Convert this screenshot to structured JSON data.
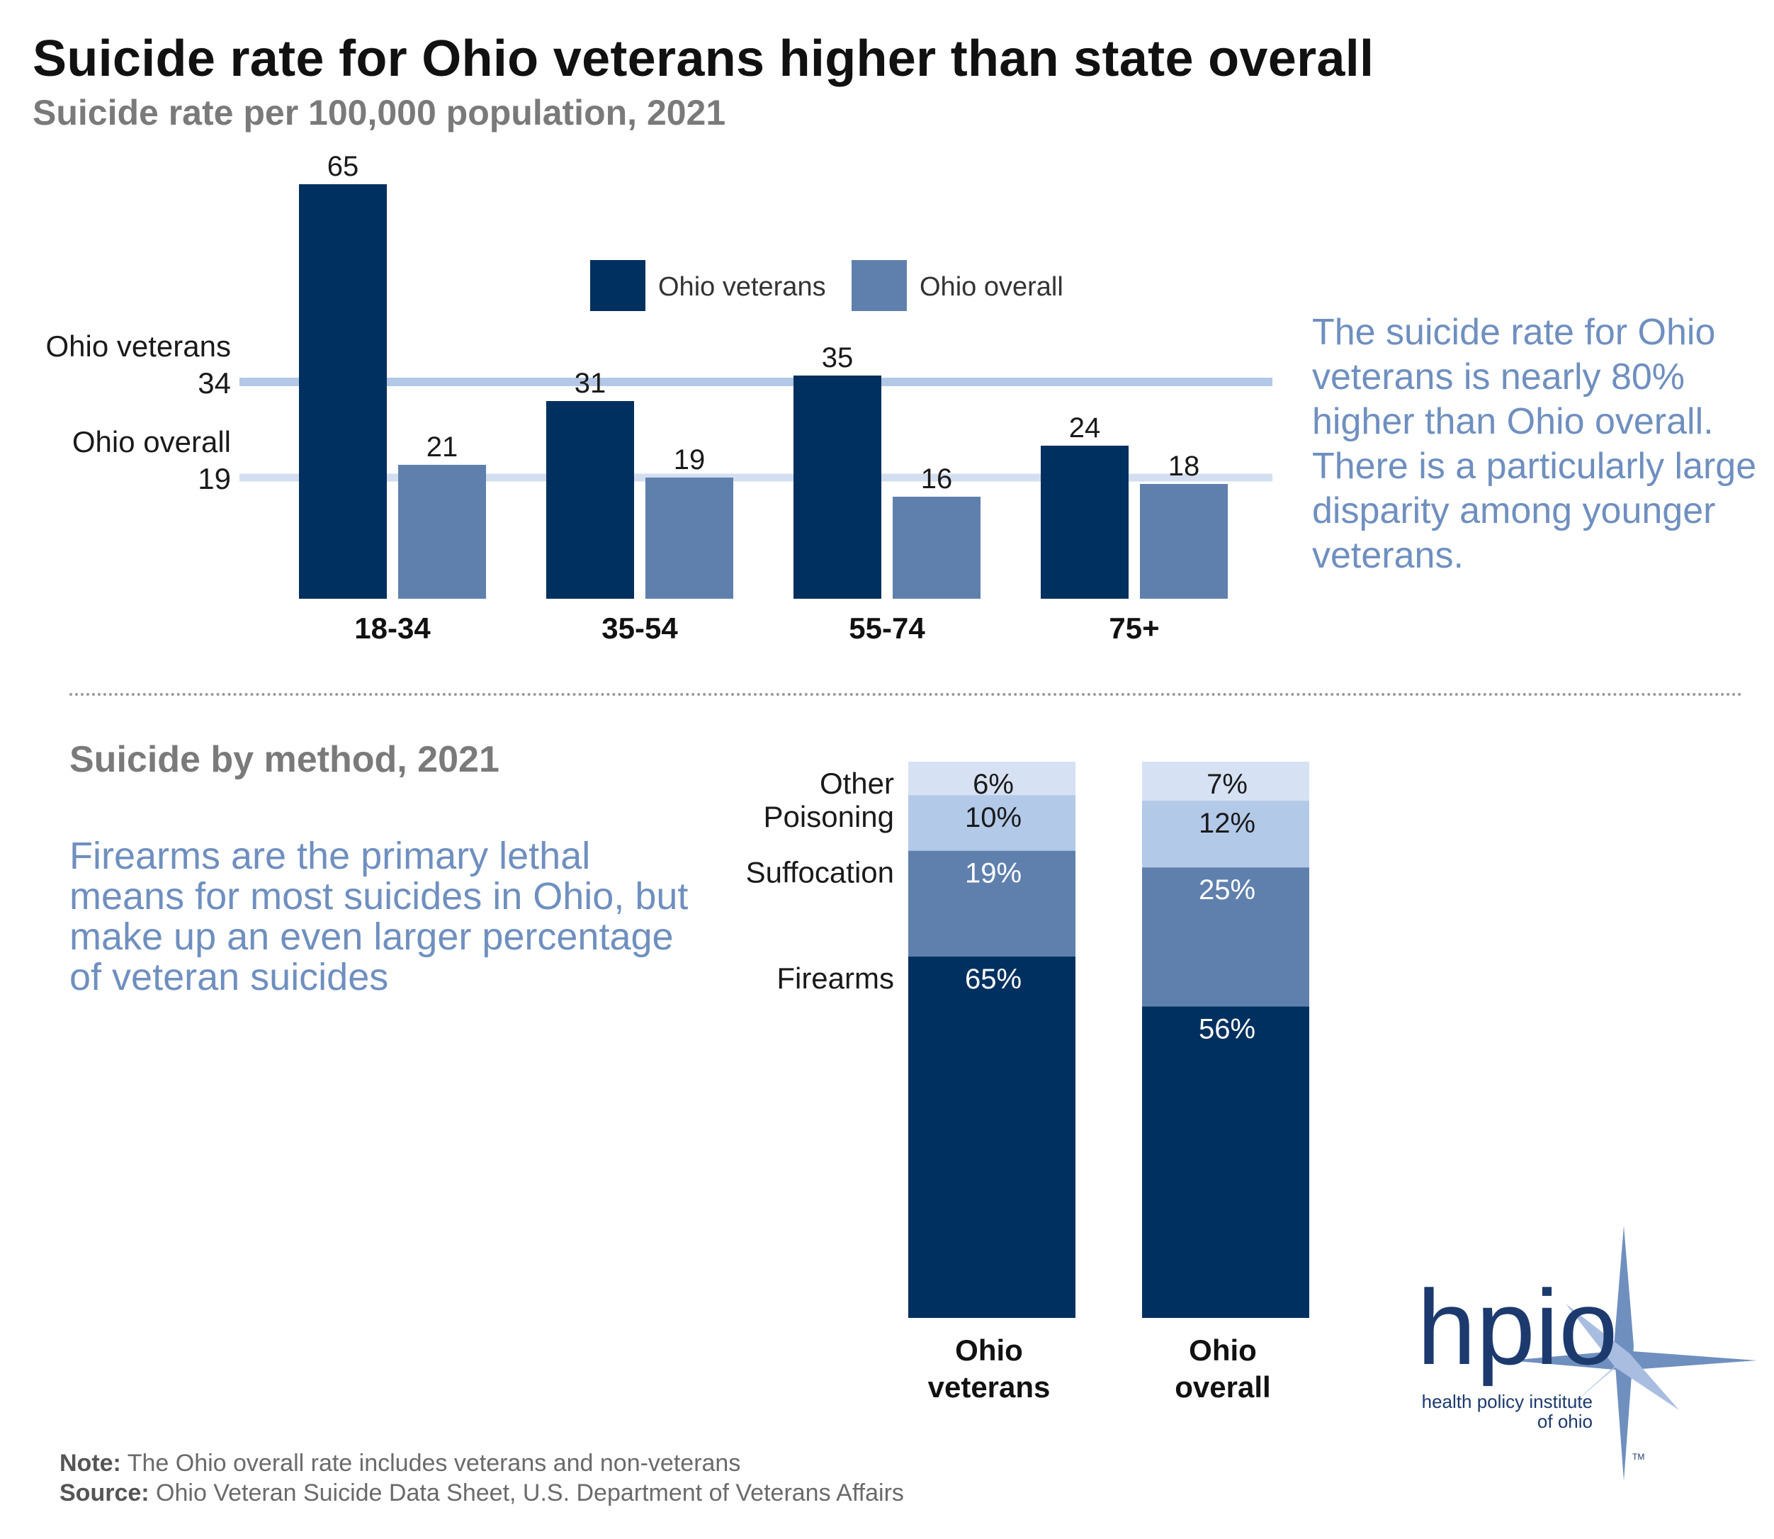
{
  "title": "Suicide rate for Ohio veterans higher than state overall",
  "subtitle": "Suicide rate per 100,000 population, 2021",
  "colors": {
    "veterans": "#00305f",
    "overall": "#5f80ad",
    "ref_line_veterans": "#b3c8e6",
    "ref_line_overall": "#d3dff0",
    "callout_text": "#6f8fbf",
    "other": "#d6e2f3",
    "poisoning": "#b3c9e8"
  },
  "callout_top": "The suicide rate for Ohio veterans is nearly 80% higher than Ohio overall. There is a particularly large disparity among younger veterans.",
  "chart_data": [
    {
      "type": "bar",
      "title": "Suicide rate per 100,000 population, 2021",
      "categories": [
        "18-34",
        "35-54",
        "55-74",
        "75+"
      ],
      "series": [
        {
          "name": "Ohio veterans",
          "values": [
            65,
            31,
            35,
            24
          ]
        },
        {
          "name": "Ohio overall",
          "values": [
            21,
            19,
            16,
            18
          ]
        }
      ],
      "reference_lines": [
        {
          "name": "Ohio veterans",
          "value": 34
        },
        {
          "name": "Ohio overall",
          "value": 19
        }
      ],
      "legend": [
        "Ohio veterans",
        "Ohio overall"
      ],
      "legend_position": "top-center",
      "ylim": [
        0,
        65
      ],
      "grid": false
    },
    {
      "type": "bar",
      "stacked": true,
      "percent": true,
      "title": "Suicide by method, 2021",
      "categories": [
        "Ohio veterans",
        "Ohio overall"
      ],
      "category_labels": [
        [
          "Ohio",
          "veterans"
        ],
        [
          "Ohio",
          "overall"
        ]
      ],
      "series": [
        {
          "name": "Firearms",
          "values": [
            65,
            56
          ],
          "labels": [
            "65%",
            "56%"
          ]
        },
        {
          "name": "Suffocation",
          "values": [
            19,
            25
          ],
          "labels": [
            "19%",
            "25%"
          ]
        },
        {
          "name": "Poisoning",
          "values": [
            10,
            12
          ],
          "labels": [
            "10%",
            "12%"
          ]
        },
        {
          "name": "Other",
          "values": [
            6,
            7
          ],
          "labels": [
            "6%",
            "7%"
          ]
        }
      ],
      "ylim": [
        0,
        100
      ]
    }
  ],
  "section2": {
    "title": "Suicide by method, 2021",
    "callout": "Firearms are the primary lethal means for most suicides in Ohio, but make up an even larger percentage of veteran suicides"
  },
  "footer": {
    "note_label": "Note:",
    "note_text": " The Ohio overall rate includes veterans and non-veterans",
    "source_label": "Source:",
    "source_text": " Ohio Veteran Suicide Data Sheet, U.S. Department of Veterans Affairs"
  },
  "logo": {
    "wordmark": "hpio",
    "tagline_1": "health policy institute",
    "tagline_2": "of ohio",
    "tm": "TM"
  }
}
